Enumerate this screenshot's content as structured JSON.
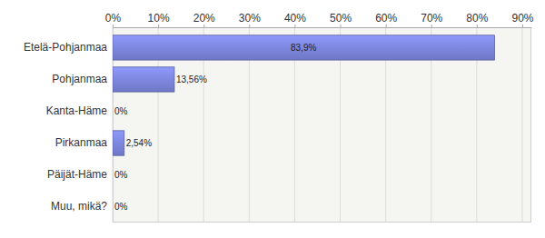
{
  "chart_data": {
    "type": "bar",
    "orientation": "horizontal",
    "categories": [
      "Etelä-Pohjanmaa",
      "Pohjanmaa",
      "Kanta-Häme",
      "Pirkanmaa",
      "Päijät-Häme",
      "Muu, mikä?"
    ],
    "values": [
      83.9,
      13.56,
      0,
      2.54,
      0,
      0
    ],
    "value_labels": [
      "83,9%",
      "13,56%",
      "0%",
      "2,54%",
      "0%",
      "0%"
    ],
    "data_labels": true,
    "color": "#7780d3",
    "xlim": [
      0,
      92
    ],
    "xticks": [
      {
        "value": 0,
        "label": "0%"
      },
      {
        "value": 10,
        "label": "10%"
      },
      {
        "value": 20,
        "label": "20%"
      },
      {
        "value": 30,
        "label": "30%"
      },
      {
        "value": 40,
        "label": "40%"
      },
      {
        "value": 50,
        "label": "50%"
      },
      {
        "value": 60,
        "label": "60%"
      },
      {
        "value": 70,
        "label": "70%"
      },
      {
        "value": 80,
        "label": "80%"
      },
      {
        "value": 90,
        "label": "90%"
      }
    ],
    "grid": true
  }
}
